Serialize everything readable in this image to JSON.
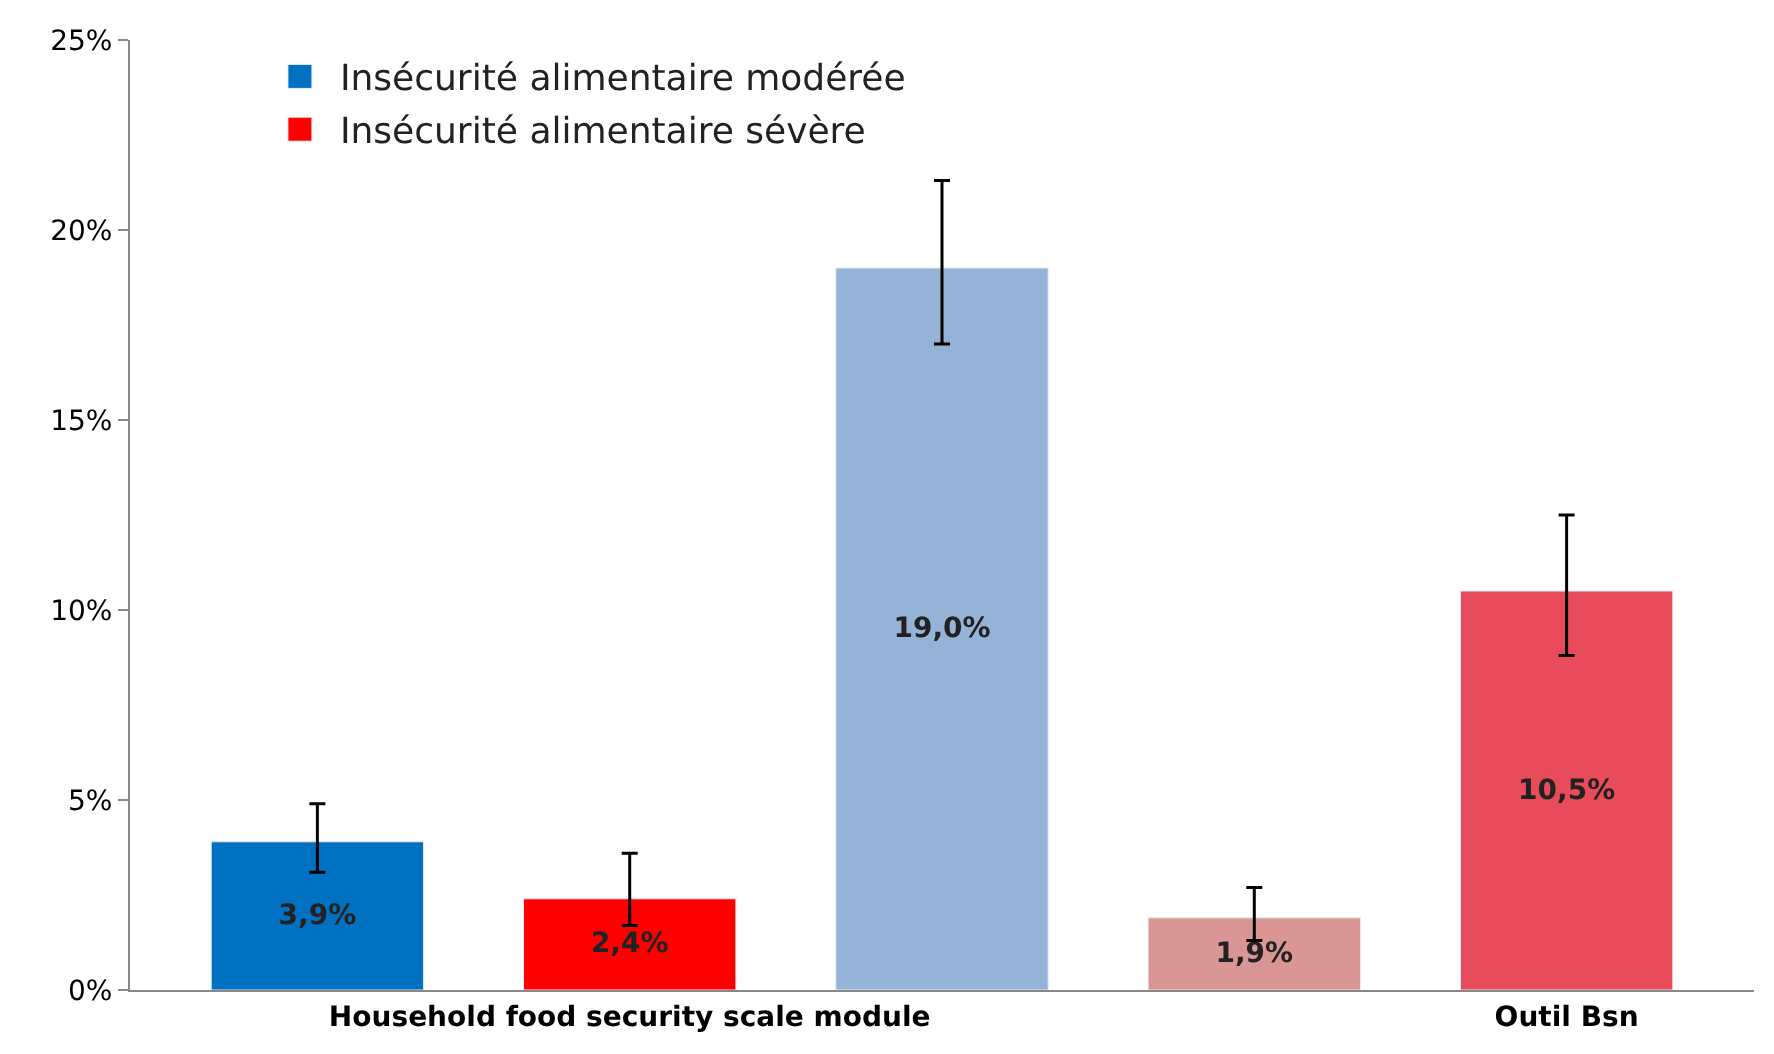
{
  "chart_data": {
    "type": "bar",
    "categories": [
      null,
      "Household food security scale module",
      null,
      null,
      "Outil Bsn"
    ],
    "series": [
      {
        "name": "Insécurité alimentaire modérée",
        "color": "#0070c0",
        "colors": [
          null,
          null,
          "#95b3d7",
          null,
          null
        ],
        "values": [
          3.9,
          null,
          19.0,
          null,
          null
        ],
        "errors": [
          [
            3.1,
            4.9
          ],
          null,
          [
            17.0,
            21.3
          ],
          null,
          null
        ],
        "value_labels": [
          "3,9%",
          null,
          "19,0%",
          null,
          null
        ]
      },
      {
        "name": "Insécurité alimentaire sévère",
        "color": "#ff0000",
        "colors": [
          null,
          null,
          null,
          "#d99694",
          null
        ],
        "values": [
          null,
          2.4,
          null,
          1.9,
          null
        ],
        "errors": [
          null,
          [
            1.7,
            3.6
          ],
          null,
          [
            1.3,
            2.7
          ],
          null
        ],
        "value_labels": [
          null,
          "2,4%",
          null,
          "1,9%",
          null
        ]
      },
      {
        "color": "#e84c5a",
        "values": [
          null,
          null,
          null,
          null,
          10.5
        ],
        "errors": [
          null,
          null,
          null,
          null,
          [
            8.8,
            12.5
          ]
        ],
        "value_labels": [
          null,
          null,
          null,
          null,
          "10,5%"
        ]
      }
    ],
    "ylim": [
      0,
      25
    ],
    "yticks": [
      {
        "value": 0,
        "label": "0%"
      },
      {
        "value": 5,
        "label": "5%"
      },
      {
        "value": 10,
        "label": "10%"
      },
      {
        "value": 15,
        "label": "15%"
      },
      {
        "value": 20,
        "label": "20%"
      },
      {
        "value": 25,
        "label": "25%"
      }
    ],
    "legend": "top left"
  }
}
